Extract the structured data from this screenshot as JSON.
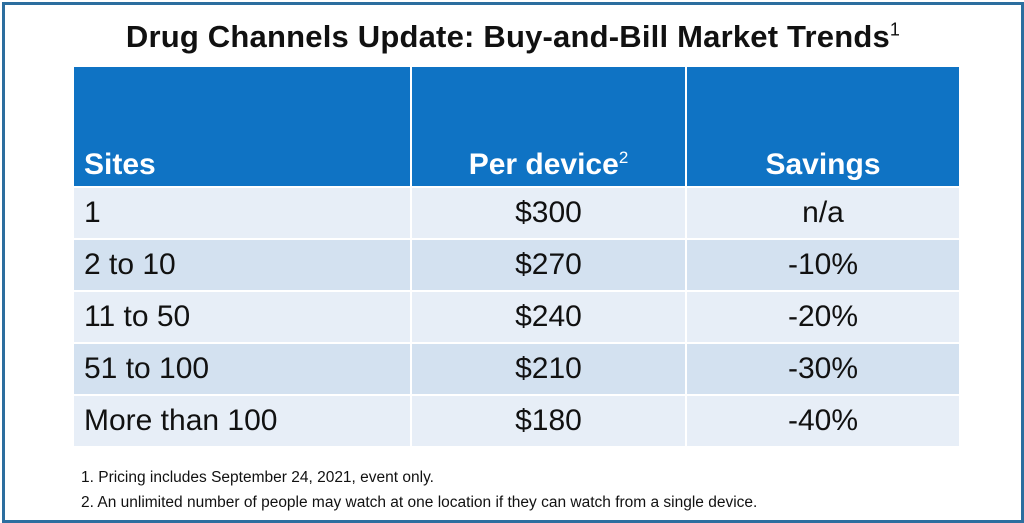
{
  "title": {
    "text": "Drug Channels Update: Buy-and-Bill Market Trends",
    "sup": "1"
  },
  "table": {
    "headers": {
      "sites": "Sites",
      "per_device": "Per device",
      "per_device_sup": "2",
      "savings": "Savings"
    },
    "rows": [
      {
        "sites": "1",
        "per_device": "$300",
        "savings": "n/a"
      },
      {
        "sites": "2 to 10",
        "per_device": "$270",
        "savings": "-10%"
      },
      {
        "sites": "11 to 50",
        "per_device": "$240",
        "savings": "-20%"
      },
      {
        "sites": "51 to 100",
        "per_device": "$210",
        "savings": "-30%"
      },
      {
        "sites": "More than 100",
        "per_device": "$180",
        "savings": "-40%"
      }
    ]
  },
  "footnotes": [
    "1. Pricing includes September 24, 2021, event only.",
    "2. An unlimited number of people may watch at one location if they can watch from a single device."
  ],
  "colors": {
    "header_blue": "#0f73c4",
    "frame_border": "#2c6e9f",
    "row_light": "#e7eef7",
    "row_dark": "#d3e1f0"
  }
}
